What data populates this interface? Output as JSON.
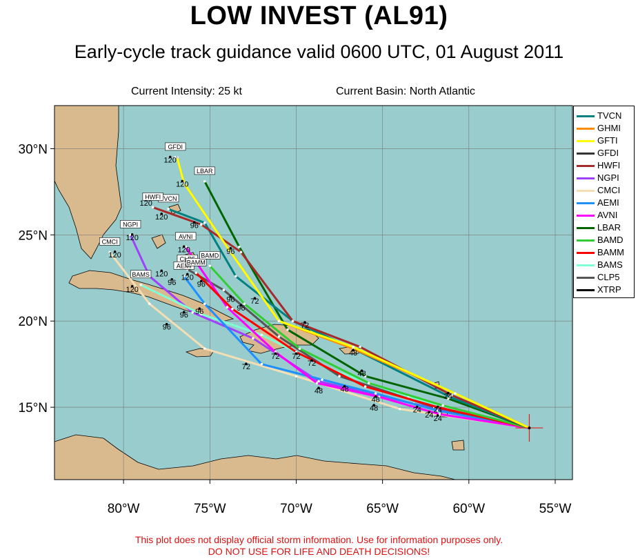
{
  "title": "LOW INVEST (AL91)",
  "subtitle": "Early-cycle track guidance valid 0600 UTC, 01 August 2011",
  "info": {
    "intensity": "Current Intensity: 25 kt",
    "basin": "Current Basin: North Atlantic"
  },
  "map": {
    "lon_range": [
      -84,
      -54
    ],
    "lat_range": [
      10.8,
      32.5
    ],
    "ocean_color": "#99cccc",
    "land_color": "#d9ba8f",
    "lat_ticks": [
      {
        "v": 30,
        "label": "30°N"
      },
      {
        "v": 25,
        "label": "25°N"
      },
      {
        "v": 20,
        "label": "20°N"
      },
      {
        "v": 15,
        "label": "15°N"
      }
    ],
    "lon_ticks": [
      {
        "v": -80,
        "label": "80°W"
      },
      {
        "v": -75,
        "label": "75°W"
      },
      {
        "v": -70,
        "label": "70°W"
      },
      {
        "v": -65,
        "label": "65°W"
      },
      {
        "v": -60,
        "label": "60°W"
      },
      {
        "v": -55,
        "label": "55°W"
      }
    ],
    "storm_position": {
      "lon": -56.5,
      "lat": 13.8
    }
  },
  "legend": [
    {
      "name": "TVCN",
      "color": "#008080"
    },
    {
      "name": "GHMI",
      "color": "#ff8c00"
    },
    {
      "name": "GFTI",
      "color": "#ffff00"
    },
    {
      "name": "GFDI",
      "color": "#333333"
    },
    {
      "name": "HWFI",
      "color": "#a52a2a"
    },
    {
      "name": "NGPI",
      "color": "#a040ff"
    },
    {
      "name": "CMCI",
      "color": "#f5deb3"
    },
    {
      "name": "AEMI",
      "color": "#1e90ff"
    },
    {
      "name": "AVNI",
      "color": "#ff00ff"
    },
    {
      "name": "LBAR",
      "color": "#006400"
    },
    {
      "name": "BAMD",
      "color": "#32cd32"
    },
    {
      "name": "BAMM",
      "color": "#ff0000"
    },
    {
      "name": "BAMS",
      "color": "#7fffd4"
    },
    {
      "name": "CLP5",
      "color": "#555555"
    },
    {
      "name": "XTRP",
      "color": "#000000"
    }
  ],
  "tracks": [
    {
      "name": "CMCI",
      "color": "#f5deb3",
      "label": "CMCI",
      "points": [
        [
          -56.5,
          13.8
        ],
        [
          -64,
          14.9
        ],
        [
          -70,
          16.8
        ],
        [
          -75.3,
          18.4
        ],
        [
          -78.5,
          21
        ],
        [
          -80.8,
          24
        ]
      ]
    },
    {
      "name": "NGPI",
      "color": "#a040ff",
      "label": "NGPI",
      "points": [
        [
          -56.5,
          13.8
        ],
        [
          -63.2,
          15.2
        ],
        [
          -68.7,
          16.5
        ],
        [
          -72.5,
          19
        ],
        [
          -76,
          20.5
        ],
        [
          -78.5,
          22.6
        ],
        [
          -79.6,
          25
        ]
      ]
    },
    {
      "name": "BAMS",
      "color": "#7fffd4",
      "label": "BAMS",
      "points": [
        [
          -56.5,
          13.8
        ],
        [
          -63.5,
          15.6
        ],
        [
          -68,
          17.2
        ],
        [
          -72,
          19.2
        ],
        [
          -75.5,
          20.4
        ],
        [
          -79,
          22.1
        ]
      ]
    },
    {
      "name": "CLP5",
      "color": "#555555",
      "label": "CLP5",
      "points": [
        [
          -56.5,
          13.8
        ],
        [
          -62,
          15
        ],
        [
          -67.5,
          16.8
        ],
        [
          -71,
          19.1
        ],
        [
          -74.2,
          21.8
        ],
        [
          -76.3,
          23
        ]
      ]
    },
    {
      "name": "AEMI",
      "color": "#1e90ff",
      "label": "AEMI",
      "points": [
        [
          -56.5,
          13.8
        ],
        [
          -61.8,
          14.8
        ],
        [
          -65.4,
          15.8
        ],
        [
          -68.5,
          16.6
        ],
        [
          -72,
          17.5
        ],
        [
          -75.3,
          21
        ],
        [
          -76.5,
          22.6
        ]
      ]
    },
    {
      "name": "AVNI",
      "color": "#ff00ff",
      "label": "AVNI",
      "points": [
        [
          -56.5,
          13.8
        ],
        [
          -61.7,
          14.6
        ],
        [
          -65.2,
          15.6
        ],
        [
          -68.8,
          16.4
        ],
        [
          -71.2,
          18.2
        ],
        [
          -74,
          20.8
        ],
        [
          -76.4,
          24.3
        ]
      ]
    },
    {
      "name": "BAMM",
      "color": "#ff0000",
      "label": "BAMM",
      "points": [
        [
          -56.5,
          13.8
        ],
        [
          -61.8,
          15
        ],
        [
          -66,
          16.2
        ],
        [
          -70,
          18.2
        ],
        [
          -73.7,
          20.7
        ],
        [
          -75.8,
          22.8
        ]
      ]
    },
    {
      "name": "BAMD",
      "color": "#32cd32",
      "label": "BAMD",
      "points": [
        [
          -56.5,
          13.8
        ],
        [
          -61.5,
          15.1
        ],
        [
          -65.8,
          16.4
        ],
        [
          -69.8,
          18.4
        ],
        [
          -73,
          21
        ],
        [
          -75,
          23.2
        ]
      ]
    },
    {
      "name": "LBAR",
      "color": "#006400",
      "label": "LBAR",
      "points": [
        [
          -56.5,
          13.8
        ],
        [
          -61.2,
          15.5
        ],
        [
          -66,
          16.8
        ],
        [
          -70.5,
          19.5
        ],
        [
          -73.3,
          24.3
        ],
        [
          -75.3,
          28.1
        ]
      ]
    },
    {
      "name": "TVCN",
      "color": "#008080",
      "label": "TVCN",
      "points": [
        [
          -56.5,
          13.8
        ],
        [
          -61.1,
          15.6
        ],
        [
          -66.5,
          18.3
        ],
        [
          -70.2,
          20
        ],
        [
          -73.5,
          22.6
        ],
        [
          -75.3,
          25.7
        ],
        [
          -77.4,
          26.5
        ]
      ]
    },
    {
      "name": "HWFI",
      "color": "#a52a2a",
      "label": "HWFI",
      "points": [
        [
          -56.5,
          13.8
        ],
        [
          -61,
          15.7
        ],
        [
          -66.3,
          18.5
        ],
        [
          -70.2,
          20
        ],
        [
          -73.2,
          24
        ],
        [
          -75.5,
          25.6
        ],
        [
          -78.3,
          26.6
        ]
      ]
    },
    {
      "name": "GHMI",
      "color": "#ff8c00",
      "label": "GHMI",
      "points": [
        [
          -56.5,
          13.8
        ],
        [
          -60.8,
          15.8
        ],
        [
          -66.7,
          18.4
        ],
        [
          -71,
          20
        ],
        [
          -73.8,
          24
        ],
        [
          -76.5,
          28
        ],
        [
          -76.9,
          29.5
        ]
      ]
    },
    {
      "name": "GFTI",
      "color": "#ffff00",
      "label": "GFTI",
      "points": [
        [
          -56.5,
          13.8
        ],
        [
          -60.8,
          15.8
        ],
        [
          -66.7,
          18.5
        ],
        [
          -71,
          20
        ],
        [
          -73.8,
          24
        ],
        [
          -76.5,
          28
        ],
        [
          -76.9,
          29.5
        ]
      ]
    },
    {
      "name": "GFDI",
      "color": "#333333",
      "label": "GFDI",
      "points": [
        [
          -76.9,
          29.5
        ],
        [
          -77,
          29.5
        ]
      ]
    }
  ],
  "hour_labels": [
    {
      "text": "24",
      "lon": -61.2,
      "lat": 15.5
    },
    {
      "text": "24",
      "lon": -61.8,
      "lat": 14.7
    },
    {
      "text": "24",
      "lon": -62.3,
      "lat": 14.4
    },
    {
      "text": "24",
      "lon": -63,
      "lat": 14.7
    },
    {
      "text": "24",
      "lon": -61.8,
      "lat": 14.2
    },
    {
      "text": "48",
      "lon": -65.4,
      "lat": 15.3
    },
    {
      "text": "48",
      "lon": -68.7,
      "lat": 15.8
    },
    {
      "text": "48",
      "lon": -66.2,
      "lat": 16.8
    },
    {
      "text": "48",
      "lon": -65.5,
      "lat": 14.8
    },
    {
      "text": "48",
      "lon": -67.2,
      "lat": 15.9
    },
    {
      "text": "48",
      "lon": -66.7,
      "lat": 18
    },
    {
      "text": "72",
      "lon": -72.9,
      "lat": 17.2
    },
    {
      "text": "72",
      "lon": -71.2,
      "lat": 17.8
    },
    {
      "text": "72",
      "lon": -70,
      "lat": 17.8
    },
    {
      "text": "72",
      "lon": -69.1,
      "lat": 17.4
    },
    {
      "text": "72",
      "lon": -69.5,
      "lat": 19.6
    },
    {
      "text": "72",
      "lon": -72.4,
      "lat": 21
    },
    {
      "text": "96",
      "lon": -77.5,
      "lat": 19.5
    },
    {
      "text": "96",
      "lon": -76.5,
      "lat": 20.2
    },
    {
      "text": "96",
      "lon": -75.6,
      "lat": 20.4
    },
    {
      "text": "96",
      "lon": -73.8,
      "lat": 21.1
    },
    {
      "text": "96",
      "lon": -73.2,
      "lat": 20.6
    },
    {
      "text": "96",
      "lon": -77.2,
      "lat": 22.1
    },
    {
      "text": "96",
      "lon": -75.5,
      "lat": 22
    },
    {
      "text": "96",
      "lon": -73.8,
      "lat": 23.9
    },
    {
      "text": "96",
      "lon": -75.9,
      "lat": 25.4
    },
    {
      "text": "120",
      "lon": -80.5,
      "lat": 23.7
    },
    {
      "text": "120",
      "lon": -79.5,
      "lat": 24.7
    },
    {
      "text": "120",
      "lon": -79.5,
      "lat": 21.7
    },
    {
      "text": "120",
      "lon": -77.8,
      "lat": 22.6
    },
    {
      "text": "120",
      "lon": -77.8,
      "lat": 25.9
    },
    {
      "text": "120",
      "lon": -76.5,
      "lat": 24
    },
    {
      "text": "120",
      "lon": -76.3,
      "lat": 22.4
    },
    {
      "text": "120",
      "lon": -76.6,
      "lat": 27.8
    },
    {
      "text": "120",
      "lon": -77.3,
      "lat": 29.2
    },
    {
      "text": "120",
      "lon": -78.7,
      "lat": 26.7
    }
  ],
  "disclaimer": {
    "line1": "This plot does not display official storm information. Use for information purposes only.",
    "line2": "DO NOT USE FOR LIFE AND DEATH DECISIONS!"
  }
}
